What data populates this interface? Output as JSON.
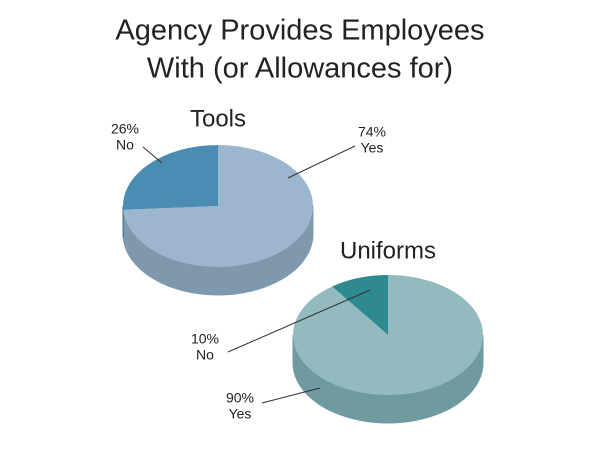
{
  "title": [
    "Agency Provides Employees",
    "With (or Allowances for)"
  ],
  "chart_data": [
    {
      "type": "pie",
      "title": "Tools",
      "categories": [
        "Yes",
        "No"
      ],
      "values": [
        74,
        26
      ],
      "value_labels": [
        "74%",
        "26%"
      ],
      "colors": [
        "#9bb6cd",
        "#4b8db2"
      ],
      "side_colors": [
        "#7e98ae",
        "#3f7795"
      ]
    },
    {
      "type": "pie",
      "title": "Uniforms",
      "categories": [
        "Yes",
        "No"
      ],
      "values": [
        90,
        10
      ],
      "value_labels": [
        "90%",
        "10%"
      ],
      "colors": [
        "#93babf",
        "#2f8a90"
      ],
      "side_colors": [
        "#6f9aa0",
        "#256f74"
      ]
    }
  ]
}
